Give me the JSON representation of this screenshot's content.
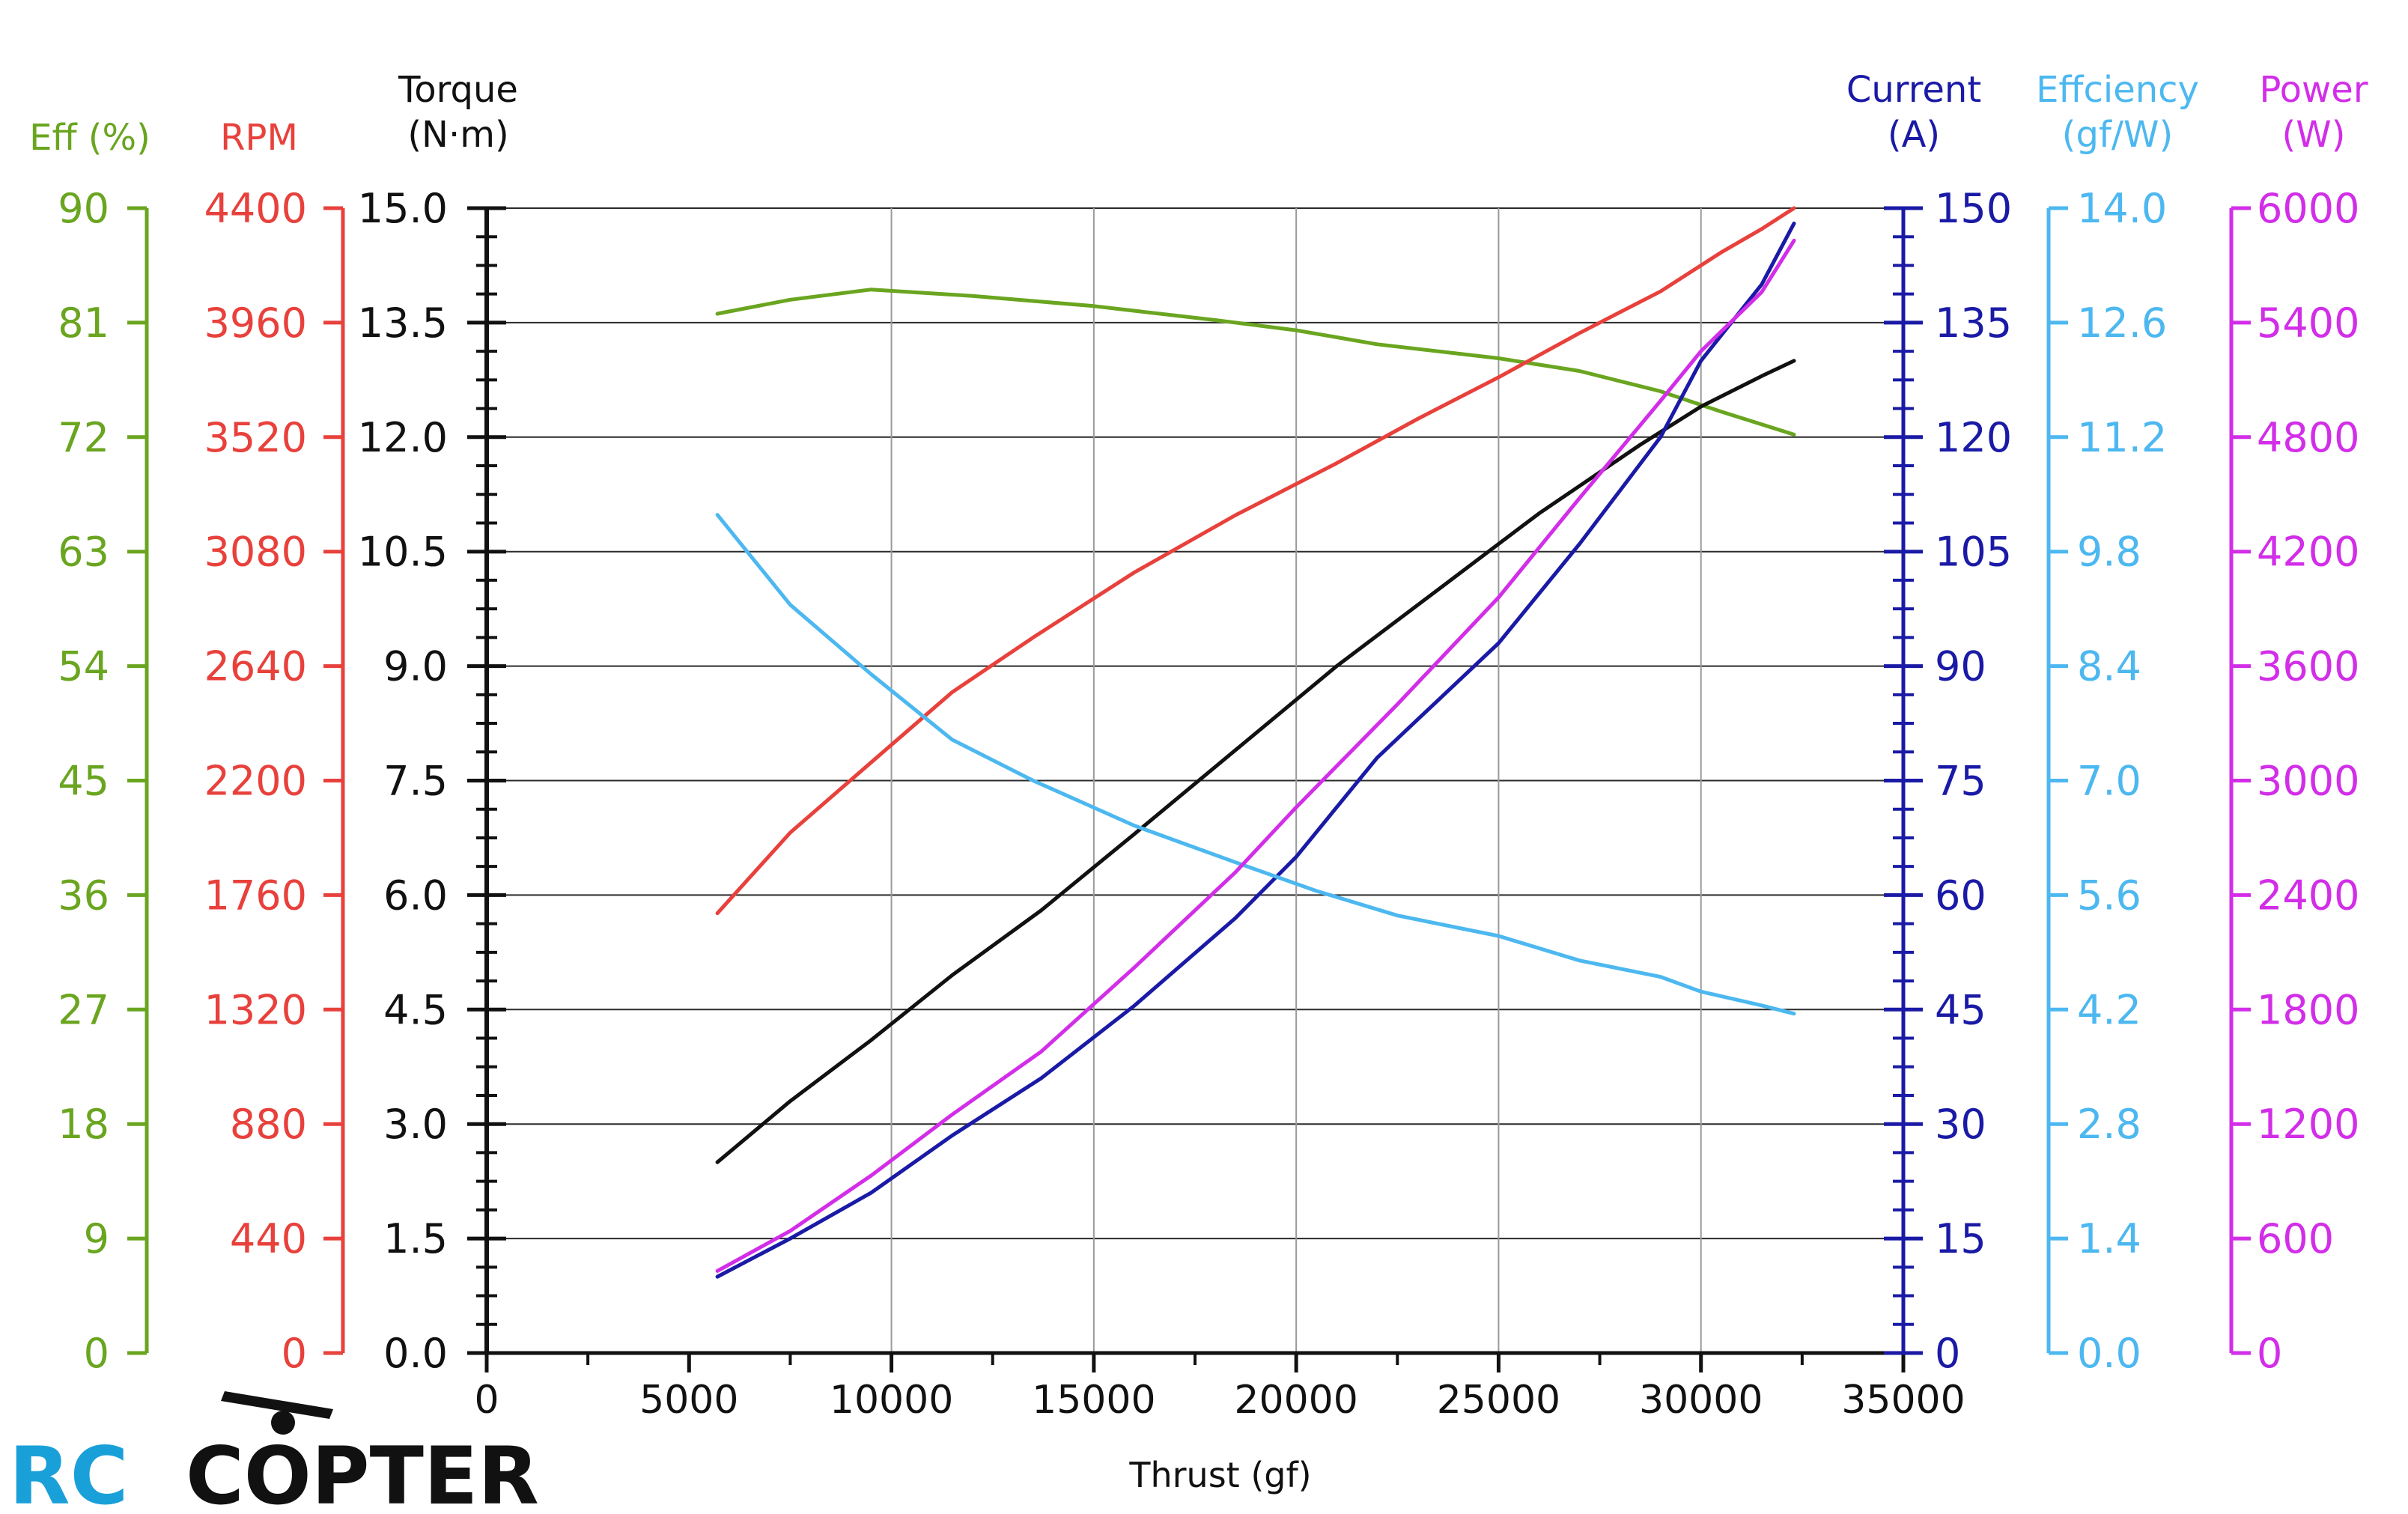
{
  "chart_data": {
    "type": "line",
    "title": "",
    "xlabel": "Thrust (gf)",
    "xlim": [
      0,
      35000
    ],
    "x_ticks": [
      "0",
      "5000",
      "10000",
      "15000",
      "20000",
      "25000",
      "30000",
      "35000"
    ],
    "grid": true,
    "axes": [
      {
        "id": "eff",
        "title": [
          "Eff (%)"
        ],
        "side": "left",
        "color": "#6aa520",
        "range": [
          0,
          90
        ],
        "ticks": [
          "0",
          "9",
          "18",
          "27",
          "36",
          "45",
          "54",
          "63",
          "72",
          "81",
          "90"
        ]
      },
      {
        "id": "rpm",
        "title": [
          "RPM"
        ],
        "side": "left",
        "color": "#e8413c",
        "range": [
          0,
          4400
        ],
        "ticks": [
          "0",
          "440",
          "880",
          "1320",
          "1760",
          "2200",
          "2640",
          "3080",
          "3520",
          "3960",
          "4400"
        ]
      },
      {
        "id": "torque",
        "title": [
          "Torque",
          "(N·m)"
        ],
        "side": "left",
        "color": "#111111",
        "range": [
          0,
          15
        ],
        "ticks": [
          "0.0",
          "1.5",
          "3.0",
          "4.5",
          "6.0",
          "7.5",
          "9.0",
          "10.5",
          "12.0",
          "13.5",
          "15.0"
        ]
      },
      {
        "id": "current",
        "title": [
          "Current",
          "(A)"
        ],
        "side": "right",
        "color": "#1a1aa6",
        "range": [
          0,
          150
        ],
        "ticks": [
          "0",
          "15",
          "30",
          "45",
          "60",
          "75",
          "90",
          "105",
          "120",
          "135",
          "150"
        ]
      },
      {
        "id": "efficiency",
        "title": [
          "Effciency",
          "(gf/W)"
        ],
        "side": "right",
        "color": "#4db8f0",
        "range": [
          0,
          14
        ],
        "ticks": [
          "0.0",
          "1.4",
          "2.8",
          "4.2",
          "5.6",
          "7.0",
          "8.4",
          "9.8",
          "11.2",
          "12.6",
          "14.0"
        ]
      },
      {
        "id": "power",
        "title": [
          "Power",
          "(W)"
        ],
        "side": "right",
        "color": "#d22ee8",
        "range": [
          0,
          6000
        ],
        "ticks": [
          "0",
          "600",
          "1200",
          "1800",
          "2400",
          "3000",
          "3600",
          "4200",
          "4800",
          "5400",
          "6000"
        ]
      }
    ],
    "series": [
      {
        "name": "Eff (%)",
        "axis": "eff",
        "color": "#6aa520",
        "x": [
          5700,
          7500,
          9500,
          12000,
          15000,
          18000,
          20000,
          22000,
          25000,
          27000,
          29000,
          30500,
          32300
        ],
        "y": [
          81.7,
          82.8,
          83.6,
          83.1,
          82.3,
          81.2,
          80.4,
          79.3,
          78.2,
          77.2,
          75.6,
          74.0,
          72.2
        ]
      },
      {
        "name": "RPM",
        "axis": "rpm",
        "color": "#e8413c",
        "x": [
          5700,
          7500,
          9500,
          11500,
          13500,
          16000,
          18500,
          21000,
          23000,
          25000,
          27000,
          29000,
          30500,
          31500,
          32300
        ],
        "y": [
          1690,
          2000,
          2270,
          2540,
          2750,
          3000,
          3220,
          3420,
          3590,
          3750,
          3920,
          4080,
          4230,
          4320,
          4400
        ]
      },
      {
        "name": "Torque",
        "axis": "torque",
        "color": "#111111",
        "x": [
          5700,
          7500,
          9500,
          11500,
          13700,
          16000,
          18500,
          21000,
          23500,
          26000,
          28500,
          30000,
          31500,
          32300
        ],
        "y": [
          2.5,
          3.3,
          4.1,
          4.95,
          5.8,
          6.8,
          7.9,
          9.0,
          10.0,
          11.0,
          11.9,
          12.4,
          12.8,
          13.0
        ]
      },
      {
        "name": "Current",
        "axis": "current",
        "color": "#1a1aa6",
        "x": [
          5700,
          7500,
          9500,
          11500,
          13700,
          16000,
          18500,
          20000,
          22000,
          25000,
          27000,
          29000,
          30000,
          31500,
          32300
        ],
        "y": [
          10,
          15,
          21,
          28.5,
          36,
          45.5,
          57,
          65,
          78,
          93,
          106,
          120,
          130,
          140,
          148
        ]
      },
      {
        "name": "Efficiency",
        "axis": "efficiency",
        "color": "#4db8f0",
        "x": [
          5700,
          7500,
          9500,
          11500,
          13500,
          16000,
          18500,
          20500,
          22500,
          25000,
          27000,
          29000,
          30000,
          31500,
          32300
        ],
        "y": [
          10.25,
          9.15,
          8.3,
          7.5,
          7.0,
          6.45,
          6.0,
          5.65,
          5.35,
          5.1,
          4.8,
          4.6,
          4.42,
          4.25,
          4.15
        ]
      },
      {
        "name": "Power",
        "axis": "power",
        "color": "#d22ee8",
        "x": [
          5700,
          7500,
          9500,
          11500,
          13700,
          16000,
          18500,
          20000,
          22500,
          25000,
          27000,
          29000,
          30000,
          31500,
          32300
        ],
        "y": [
          430,
          640,
          930,
          1250,
          1580,
          2020,
          2520,
          2860,
          3400,
          3960,
          4480,
          4990,
          5250,
          5560,
          5830
        ]
      }
    ]
  },
  "logo": {
    "part1": "RC",
    "part2": "COPTER"
  }
}
